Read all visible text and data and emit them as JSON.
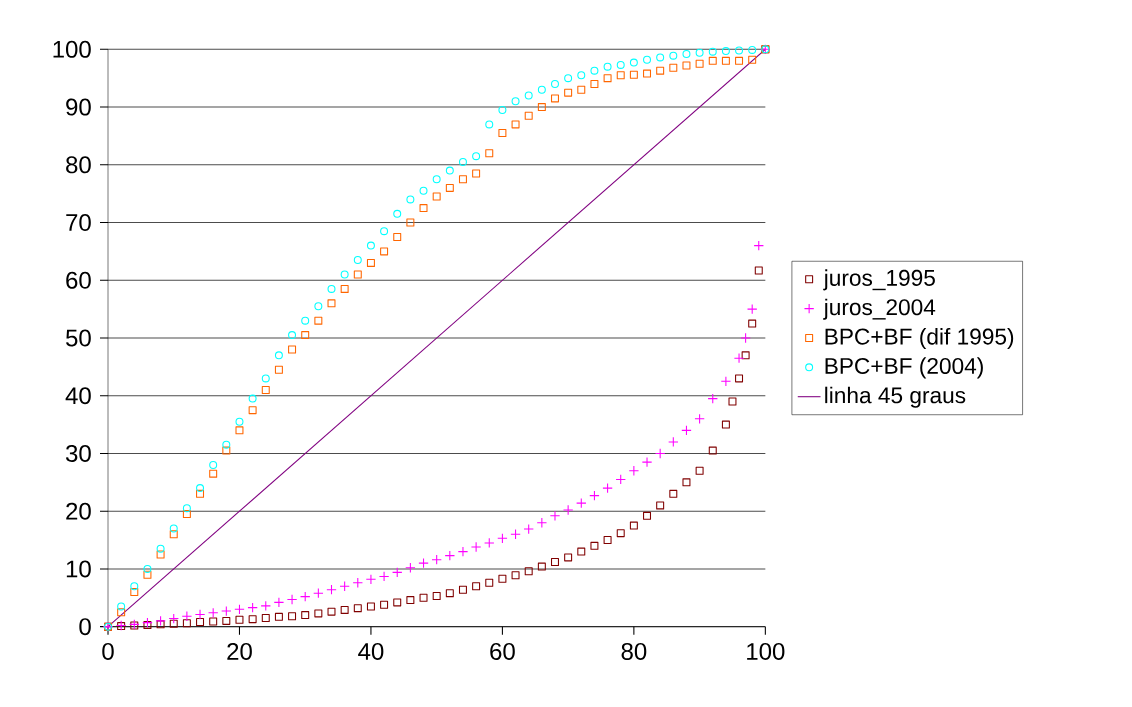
{
  "chart_data": {
    "type": "scatter",
    "xlim": [
      0,
      100
    ],
    "ylim": [
      0,
      100
    ],
    "xticks": [
      0,
      20,
      40,
      60,
      80,
      100
    ],
    "yticks": [
      0,
      10,
      20,
      30,
      40,
      50,
      60,
      70,
      80,
      90,
      100
    ],
    "grid": "y",
    "legend": "right",
    "series": [
      {
        "name": "juros_1995",
        "color": "#800000",
        "marker": "square",
        "x": [
          0,
          2,
          4,
          6,
          8,
          10,
          12,
          14,
          16,
          18,
          20,
          22,
          24,
          26,
          28,
          30,
          32,
          34,
          36,
          38,
          40,
          42,
          44,
          46,
          48,
          50,
          52,
          54,
          56,
          58,
          60,
          62,
          64,
          66,
          68,
          70,
          72,
          74,
          76,
          78,
          80,
          82,
          84,
          86,
          88,
          90,
          92,
          94,
          95,
          96,
          97,
          98,
          99,
          100
        ],
        "values": [
          0,
          0.1,
          0.2,
          0.3,
          0.4,
          0.5,
          0.6,
          0.8,
          0.9,
          1,
          1.2,
          1.3,
          1.5,
          1.7,
          1.8,
          2,
          2.3,
          2.6,
          2.9,
          3.2,
          3.5,
          3.8,
          4.2,
          4.6,
          5,
          5.3,
          5.8,
          6.4,
          7,
          7.6,
          8.3,
          8.9,
          9.6,
          10.4,
          11.2,
          12,
          13,
          14,
          15,
          16.2,
          17.5,
          19.2,
          21,
          23,
          25,
          27,
          30.5,
          35,
          39,
          43,
          47,
          52.5,
          61.7,
          100
        ]
      },
      {
        "name": "juros_2004",
        "color": "#ff00ff",
        "marker": "cross",
        "x": [
          0,
          2,
          4,
          6,
          8,
          10,
          12,
          14,
          16,
          18,
          20,
          22,
          24,
          26,
          28,
          30,
          32,
          34,
          36,
          38,
          40,
          42,
          44,
          46,
          48,
          50,
          52,
          54,
          56,
          58,
          60,
          62,
          64,
          66,
          68,
          70,
          72,
          74,
          76,
          78,
          80,
          82,
          84,
          86,
          88,
          90,
          92,
          94,
          96,
          97,
          98,
          99,
          100
        ],
        "values": [
          0,
          0.2,
          0.4,
          0.7,
          1,
          1.4,
          1.8,
          2.1,
          2.4,
          2.7,
          3,
          3.3,
          3.6,
          4.2,
          4.7,
          5.2,
          5.8,
          6.4,
          7,
          7.6,
          8.2,
          8.7,
          9.4,
          10.2,
          11,
          11.6,
          12.3,
          13,
          13.8,
          14.5,
          15.3,
          16,
          16.9,
          18,
          19.2,
          20.2,
          21.4,
          22.7,
          24,
          25.5,
          27,
          28.5,
          30,
          32,
          34,
          36,
          39.5,
          42.5,
          46.5,
          50,
          55,
          66,
          100
        ]
      },
      {
        "name": "BPC+BF (dif 1995)",
        "color": "#ff6600",
        "marker": "square",
        "x": [
          0,
          2,
          4,
          6,
          8,
          10,
          12,
          14,
          16,
          18,
          20,
          22,
          24,
          26,
          28,
          30,
          32,
          34,
          36,
          38,
          40,
          42,
          44,
          46,
          48,
          50,
          52,
          54,
          56,
          58,
          60,
          62,
          64,
          66,
          68,
          70,
          72,
          74,
          76,
          78,
          80,
          82,
          84,
          86,
          88,
          90,
          92,
          94,
          96,
          98,
          100
        ],
        "values": [
          0,
          2.5,
          6,
          9,
          12.5,
          16,
          19.5,
          23,
          26.5,
          30.5,
          34,
          37.5,
          41,
          44.5,
          48,
          50.5,
          53,
          56,
          58.5,
          61,
          63,
          65,
          67.5,
          70,
          72.5,
          74.5,
          76,
          77.5,
          78.5,
          82,
          85.5,
          87,
          88.5,
          90,
          91.5,
          92.5,
          93,
          94,
          95,
          95.5,
          95.6,
          95.8,
          96.3,
          96.8,
          97.2,
          97.5,
          98,
          98,
          98,
          98.2,
          100
        ]
      },
      {
        "name": "BPC+BF (2004)",
        "color": "#00ffff",
        "marker": "circle",
        "x": [
          0,
          2,
          4,
          6,
          8,
          10,
          12,
          14,
          16,
          18,
          20,
          22,
          24,
          26,
          28,
          30,
          32,
          34,
          36,
          38,
          40,
          42,
          44,
          46,
          48,
          50,
          52,
          54,
          56,
          58,
          60,
          62,
          64,
          66,
          68,
          70,
          72,
          74,
          76,
          78,
          80,
          82,
          84,
          86,
          88,
          90,
          92,
          94,
          96,
          98,
          100
        ],
        "values": [
          0,
          3.5,
          7,
          10,
          13.5,
          17,
          20.5,
          24,
          28,
          31.5,
          35.5,
          39.5,
          43,
          47,
          50.5,
          53,
          55.5,
          58.5,
          61,
          63.5,
          66,
          68.5,
          71.5,
          74,
          75.5,
          77.5,
          79,
          80.5,
          81.5,
          87,
          89.5,
          91,
          92,
          93,
          94,
          95,
          95.5,
          96.3,
          97,
          97.3,
          97.7,
          98.2,
          98.6,
          98.9,
          99.2,
          99.4,
          99.6,
          99.7,
          99.8,
          99.9,
          100
        ]
      },
      {
        "name": "linha 45 graus",
        "color": "#800080",
        "type": "line",
        "marker": "none",
        "x": [
          0,
          100
        ],
        "values": [
          0,
          100
        ]
      }
    ]
  }
}
